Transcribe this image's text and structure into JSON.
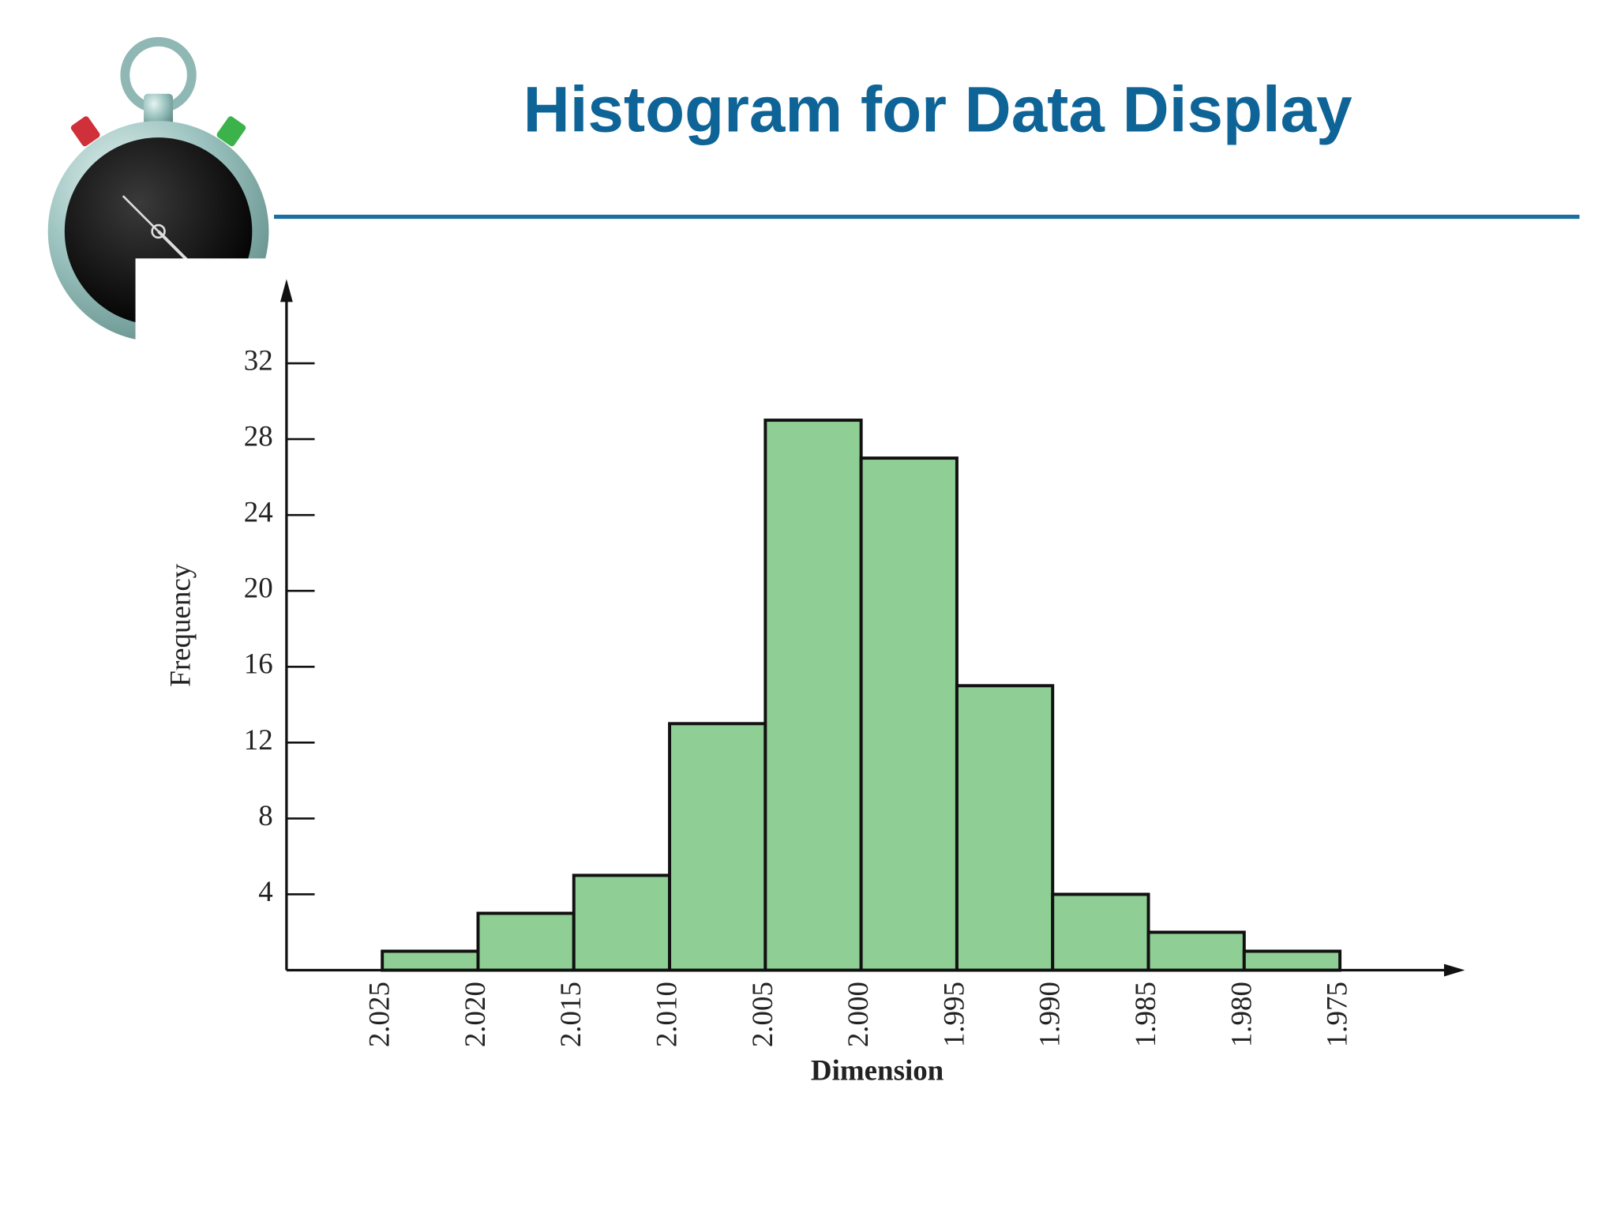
{
  "chart_data": {
    "type": "histogram",
    "title": "Histogram for Data Display",
    "bins": [
      2.025,
      2.02,
      2.015,
      2.01,
      2.005,
      2.0,
      1.995,
      1.99,
      1.985,
      1.98,
      1.975
    ],
    "counts": [
      1,
      3,
      5,
      13,
      29,
      27,
      15,
      4,
      2,
      1
    ],
    "color": "#8fce94",
    "xlabel": "Dimension",
    "ylabel": "Frequency",
    "xlim": [
      2.03,
      1.97
    ],
    "xticks": [
      2.025,
      {
        "value": 2.02,
        "label": "2.020"
      },
      2.015,
      {
        "value": 2.01,
        "label": "2.010"
      },
      2.005,
      {
        "value": 2.0,
        "label": "2.000"
      },
      1.995,
      {
        "value": 1.99,
        "label": "1.990"
      },
      1.985,
      {
        "value": 1.98,
        "label": "1.980"
      },
      1.975
    ],
    "ylim": [
      0,
      36
    ],
    "yticks": [
      4,
      8,
      12,
      16,
      20,
      24,
      28,
      32
    ],
    "grid": false
  }
}
